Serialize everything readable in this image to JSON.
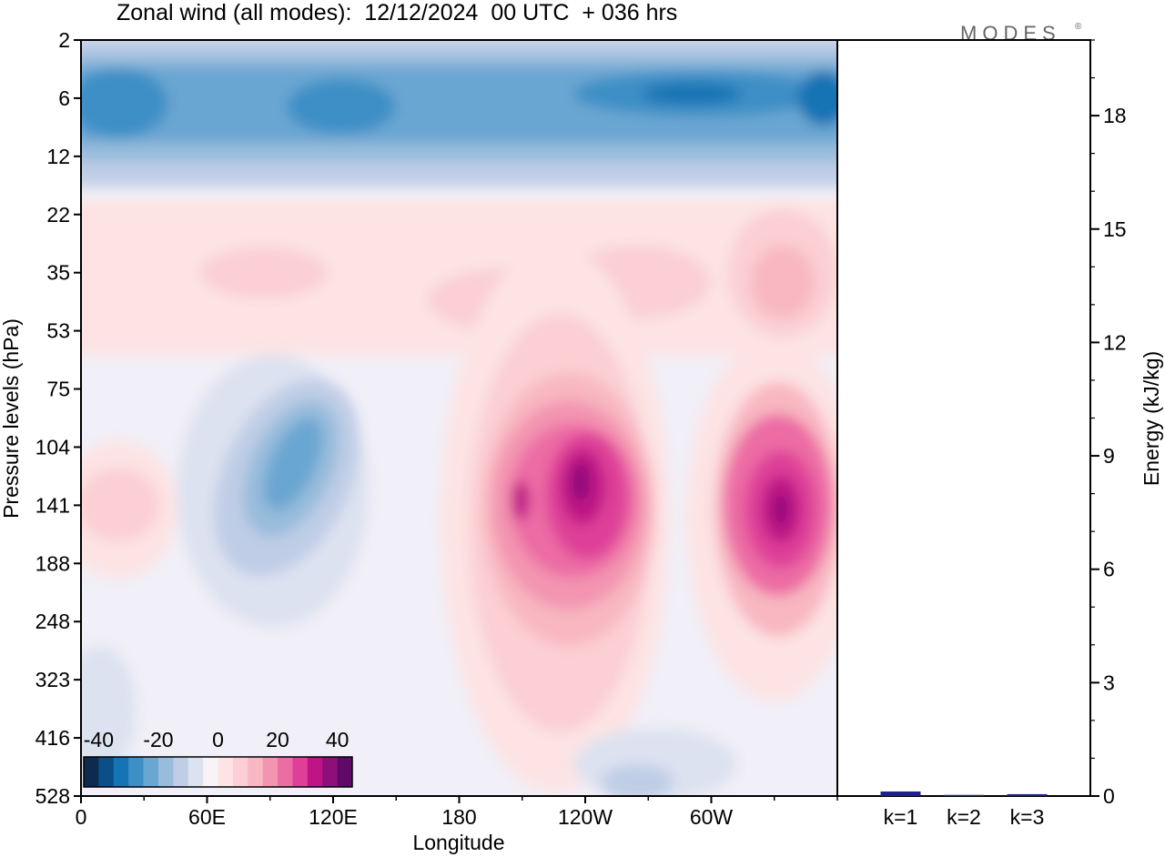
{
  "chart_data": [
    {
      "type": "heatmap",
      "title": "Zonal wind (all modes):  12/12/2024  00 UTC  + 036 hrs",
      "xlabel": "Longitude",
      "ylabel": "Pressure levels (hPa)",
      "x_ticks": [
        "0",
        "60E",
        "120E",
        "180",
        "120W",
        "60W"
      ],
      "x_tick_degrees": [
        0,
        60,
        120,
        180,
        240,
        300
      ],
      "x_range_degrees": [
        0,
        360
      ],
      "y_ticks": [
        "2",
        "6",
        "12",
        "22",
        "35",
        "53",
        "75",
        "104",
        "141",
        "188",
        "248",
        "323",
        "416",
        "528"
      ],
      "y_reversed": true,
      "colorbar": {
        "tick_labels": [
          "-40",
          "-20",
          "0",
          "20",
          "40"
        ],
        "levels": [
          -40,
          -35,
          -30,
          -25,
          -20,
          -15,
          -10,
          -5,
          0,
          5,
          10,
          15,
          20,
          25,
          30,
          35,
          40
        ],
        "colors": [
          "#0d2b4e",
          "#0b4f86",
          "#1673b4",
          "#3d8fc6",
          "#6aa6d2",
          "#98bcdc",
          "#bfcde6",
          "#dde2f0",
          "#f7f3f7",
          "#fde3e3",
          "#fbcfd3",
          "#f8b7c1",
          "#f394b1",
          "#ec6ca4",
          "#de3f98",
          "#bf1486",
          "#8e0f7a",
          "#5d0a68"
        ]
      },
      "features": [
        {
          "name": "upper-level easterlies",
          "lon": [
            0,
            360
          ],
          "level": [
            2,
            18
          ],
          "peak": -30
        },
        {
          "name": "easterly maximum 100E",
          "lon": [
            80,
            120
          ],
          "level": [
            75,
            250
          ],
          "peak": -25
        },
        {
          "name": "westerly jet 130W",
          "lon": [
            180,
            270
          ],
          "level": [
            60,
            400
          ],
          "peak": 42
        },
        {
          "name": "westerly jet 25W",
          "lon": [
            300,
            360
          ],
          "level": [
            80,
            300
          ],
          "peak": 38
        },
        {
          "name": "westerly 15E",
          "lon": [
            0,
            40
          ],
          "level": [
            110,
            200
          ],
          "peak": 12
        }
      ]
    },
    {
      "type": "bar",
      "ylabel": "Energy (kJ/kg)",
      "categories": [
        "k=1",
        "k=2",
        "k=3"
      ],
      "values": [
        0.12,
        0.03,
        0.05
      ],
      "ylim": [
        0,
        20
      ],
      "y_ticks": [
        "0",
        "3",
        "6",
        "9",
        "12",
        "15",
        "18"
      ],
      "bar_color": "#1f1f8f"
    }
  ],
  "brand": "MODES",
  "brand_mark": "®"
}
